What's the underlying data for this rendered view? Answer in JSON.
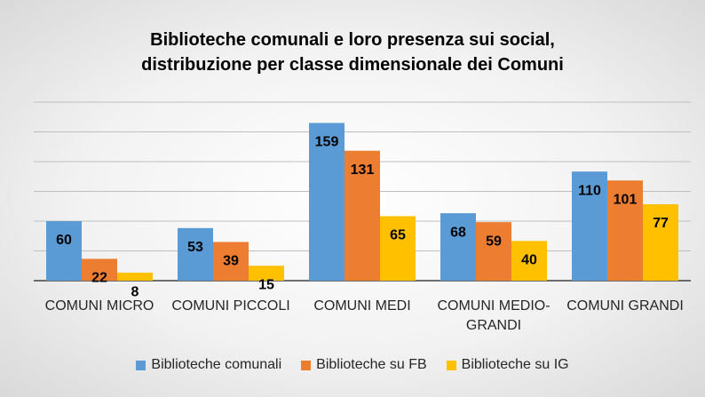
{
  "chart_data": {
    "type": "bar",
    "title": [
      "Biblioteche comunali  e loro presenza sui social,",
      "distribuzione per classe dimensionale dei Comuni"
    ],
    "categories": [
      "COMUNI MICRO",
      "COMUNI PICCOLI",
      "COMUNI MEDI",
      "COMUNI MEDIO-GRANDI",
      "COMUNI GRANDI"
    ],
    "series": [
      {
        "name": "Biblioteche comunali",
        "color": "#5b9bd5",
        "values": [
          60,
          53,
          159,
          68,
          110
        ]
      },
      {
        "name": "Biblioteche su FB",
        "color": "#ed7d31",
        "values": [
          22,
          39,
          131,
          59,
          101
        ]
      },
      {
        "name": "Biblioteche su IG",
        "color": "#ffc000",
        "values": [
          8,
          15,
          65,
          40,
          77
        ]
      }
    ],
    "ylim": [
      0,
      180
    ],
    "yticks": [
      0,
      30,
      60,
      90,
      120,
      150,
      180
    ],
    "grid": true,
    "legend": "bottom"
  }
}
